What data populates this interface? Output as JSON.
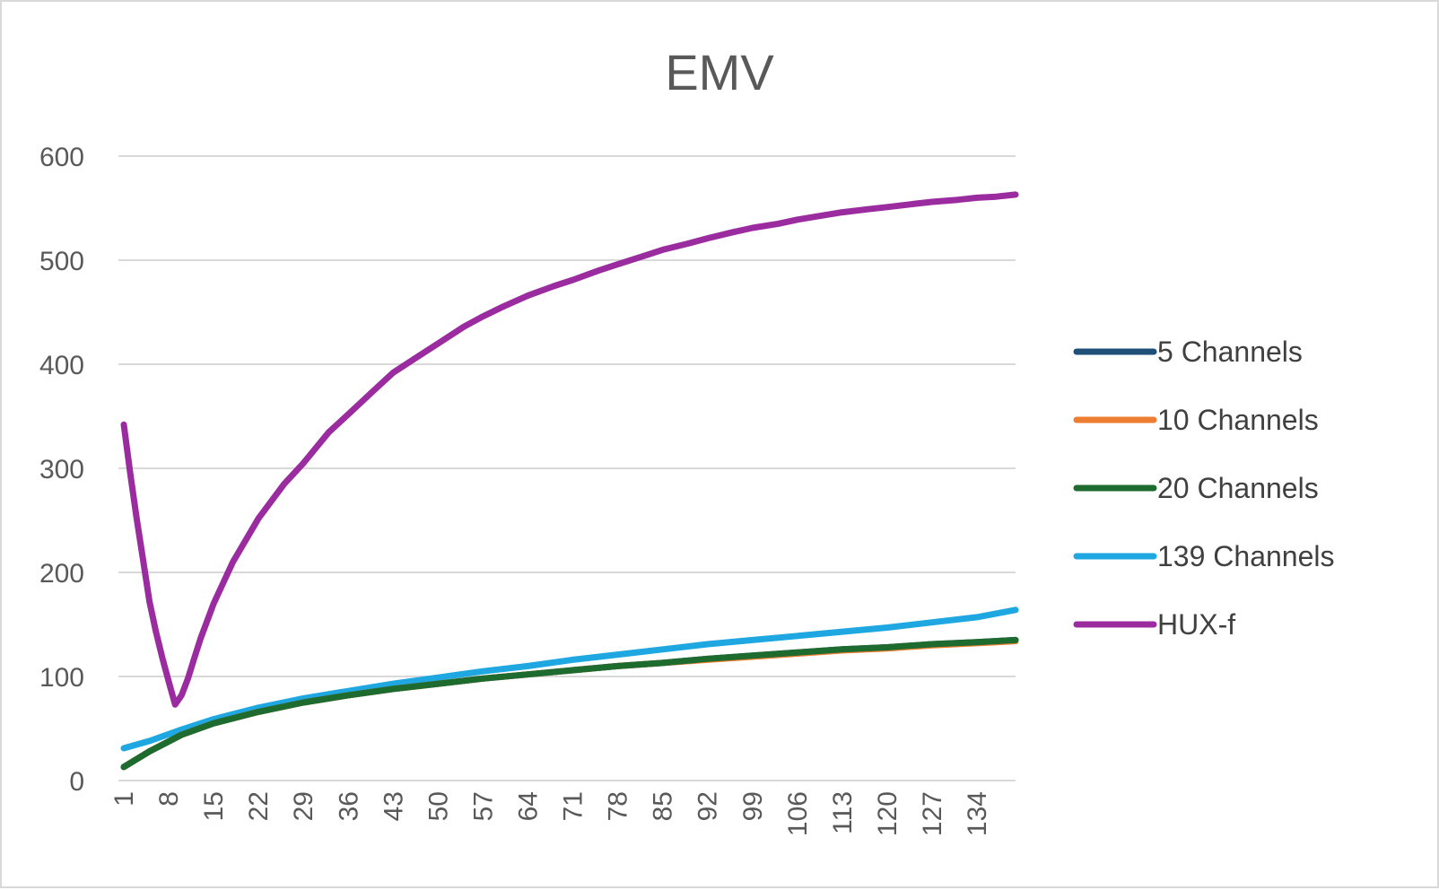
{
  "chart_data": {
    "type": "line",
    "title": "EMV",
    "xlabel": "",
    "ylabel": "",
    "ylim": [
      0,
      600
    ],
    "yticks": [
      0,
      100,
      200,
      300,
      400,
      500,
      600
    ],
    "x_start": 1,
    "x_end": 140,
    "x_tick_labels": [
      "1",
      "8",
      "15",
      "22",
      "29",
      "36",
      "43",
      "50",
      "57",
      "64",
      "71",
      "78",
      "85",
      "92",
      "99",
      "106",
      "113",
      "120",
      "127",
      "134"
    ],
    "grid": true,
    "legend_position": "right",
    "series": [
      {
        "name": "5 Channels",
        "color": "#1f4e79",
        "points": [
          [
            1,
            13
          ],
          [
            5,
            28
          ],
          [
            10,
            44
          ],
          [
            15,
            55
          ],
          [
            22,
            66
          ],
          [
            29,
            75
          ],
          [
            36,
            82
          ],
          [
            43,
            88
          ],
          [
            50,
            93
          ],
          [
            57,
            98
          ],
          [
            64,
            102
          ],
          [
            71,
            106
          ],
          [
            78,
            110
          ],
          [
            85,
            113
          ],
          [
            92,
            117
          ],
          [
            99,
            120
          ],
          [
            106,
            123
          ],
          [
            113,
            126
          ],
          [
            120,
            128
          ],
          [
            127,
            131
          ],
          [
            134,
            133
          ],
          [
            140,
            135
          ]
        ]
      },
      {
        "name": "10 Channels",
        "color": "#ed7d31",
        "points": [
          [
            1,
            13
          ],
          [
            5,
            28
          ],
          [
            10,
            44
          ],
          [
            15,
            55
          ],
          [
            22,
            66
          ],
          [
            29,
            75
          ],
          [
            36,
            82
          ],
          [
            43,
            88
          ],
          [
            50,
            93
          ],
          [
            57,
            98
          ],
          [
            64,
            102
          ],
          [
            71,
            106
          ],
          [
            78,
            110
          ],
          [
            85,
            113
          ],
          [
            92,
            116
          ],
          [
            99,
            119
          ],
          [
            106,
            122
          ],
          [
            113,
            125
          ],
          [
            120,
            127
          ],
          [
            127,
            130
          ],
          [
            134,
            132
          ],
          [
            140,
            134
          ]
        ]
      },
      {
        "name": "20 Channels",
        "color": "#1e6b2f",
        "points": [
          [
            1,
            13
          ],
          [
            5,
            28
          ],
          [
            10,
            44
          ],
          [
            15,
            55
          ],
          [
            22,
            66
          ],
          [
            29,
            75
          ],
          [
            36,
            82
          ],
          [
            43,
            88
          ],
          [
            50,
            93
          ],
          [
            57,
            98
          ],
          [
            64,
            102
          ],
          [
            71,
            106
          ],
          [
            78,
            110
          ],
          [
            85,
            113
          ],
          [
            92,
            117
          ],
          [
            99,
            120
          ],
          [
            106,
            123
          ],
          [
            113,
            126
          ],
          [
            120,
            128
          ],
          [
            127,
            131
          ],
          [
            134,
            133
          ],
          [
            140,
            135
          ]
        ]
      },
      {
        "name": "139 Channels",
        "color": "#1ea7e1",
        "points": [
          [
            1,
            31
          ],
          [
            5,
            38
          ],
          [
            10,
            49
          ],
          [
            15,
            59
          ],
          [
            22,
            70
          ],
          [
            29,
            79
          ],
          [
            36,
            86
          ],
          [
            43,
            93
          ],
          [
            50,
            99
          ],
          [
            57,
            105
          ],
          [
            64,
            110
          ],
          [
            71,
            116
          ],
          [
            78,
            121
          ],
          [
            85,
            126
          ],
          [
            92,
            131
          ],
          [
            99,
            135
          ],
          [
            106,
            139
          ],
          [
            113,
            143
          ],
          [
            120,
            147
          ],
          [
            127,
            152
          ],
          [
            134,
            157
          ],
          [
            140,
            164
          ]
        ]
      },
      {
        "name": "HUX-f",
        "color": "#9b2ca0",
        "points": [
          [
            1,
            342
          ],
          [
            2,
            295
          ],
          [
            3,
            252
          ],
          [
            4,
            212
          ],
          [
            5,
            172
          ],
          [
            6,
            143
          ],
          [
            7,
            118
          ],
          [
            8,
            95
          ],
          [
            9,
            73
          ],
          [
            10,
            82
          ],
          [
            11,
            98
          ],
          [
            12,
            118
          ],
          [
            13,
            137
          ],
          [
            15,
            170
          ],
          [
            18,
            210
          ],
          [
            22,
            252
          ],
          [
            26,
            285
          ],
          [
            29,
            305
          ],
          [
            33,
            335
          ],
          [
            36,
            352
          ],
          [
            40,
            375
          ],
          [
            43,
            392
          ],
          [
            47,
            408
          ],
          [
            50,
            420
          ],
          [
            54,
            436
          ],
          [
            57,
            446
          ],
          [
            60,
            455
          ],
          [
            64,
            466
          ],
          [
            68,
            475
          ],
          [
            71,
            481
          ],
          [
            75,
            490
          ],
          [
            78,
            496
          ],
          [
            82,
            504
          ],
          [
            85,
            510
          ],
          [
            89,
            516
          ],
          [
            92,
            521
          ],
          [
            96,
            527
          ],
          [
            99,
            531
          ],
          [
            103,
            535
          ],
          [
            106,
            539
          ],
          [
            110,
            543
          ],
          [
            113,
            546
          ],
          [
            117,
            549
          ],
          [
            120,
            551
          ],
          [
            124,
            554
          ],
          [
            127,
            556
          ],
          [
            131,
            558
          ],
          [
            134,
            560
          ],
          [
            137,
            561
          ],
          [
            140,
            563
          ]
        ]
      }
    ]
  }
}
